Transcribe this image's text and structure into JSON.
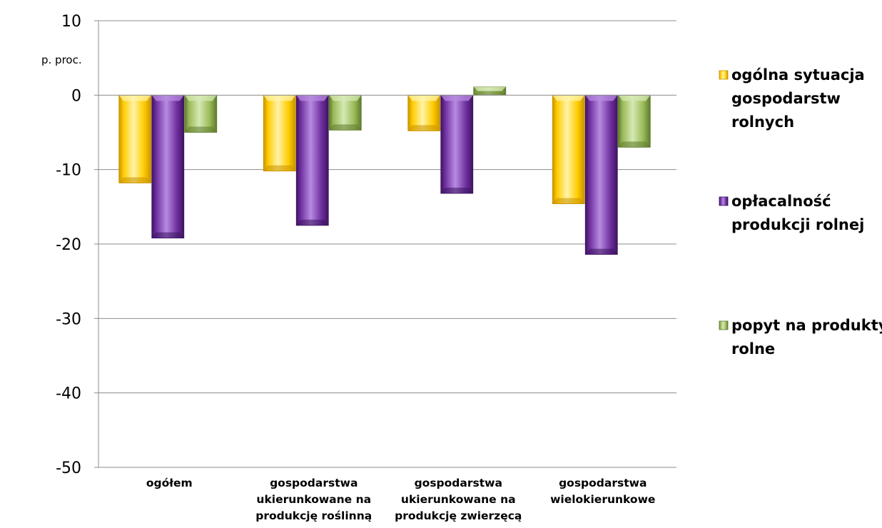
{
  "chart_data": {
    "type": "bar",
    "title": "",
    "xlabel": "",
    "ylabel": "p. proc.",
    "ylim": [
      -50,
      10
    ],
    "yticks": [
      10,
      0,
      -10,
      -20,
      -30,
      -40,
      -50
    ],
    "grid": true,
    "legend_position": "right",
    "categories": [
      [
        "ogółem"
      ],
      [
        "gospodarstwa",
        "ukierunkowane na",
        "produkcję roślinną"
      ],
      [
        "gospodarstwa",
        "ukierunkowane na",
        "produkcję zwierzęcą"
      ],
      [
        "gospodarstwa",
        "wielokierunkowe"
      ]
    ],
    "series": [
      {
        "name": [
          "ogólna sytuacja",
          "gospodarstw",
          "rolnych"
        ],
        "values": [
          -11.8,
          -10.2,
          -4.8,
          -14.6
        ],
        "color": "#FFCC00",
        "dark": "#C89300",
        "light": "#FFF3A8"
      },
      {
        "name": [
          "opłacalność",
          "produkcji rolnej"
        ],
        "values": [
          -19.2,
          -17.5,
          -13.2,
          -21.4
        ],
        "color": "#7030A0",
        "dark": "#3D1460",
        "light": "#B88BE0"
      },
      {
        "name": [
          "popyt na produkty",
          "rolne"
        ],
        "values": [
          -5.0,
          -4.7,
          1.1,
          -7.0
        ],
        "color": "#9BBB59",
        "dark": "#5E7A2C",
        "light": "#D6E8B4"
      }
    ]
  }
}
